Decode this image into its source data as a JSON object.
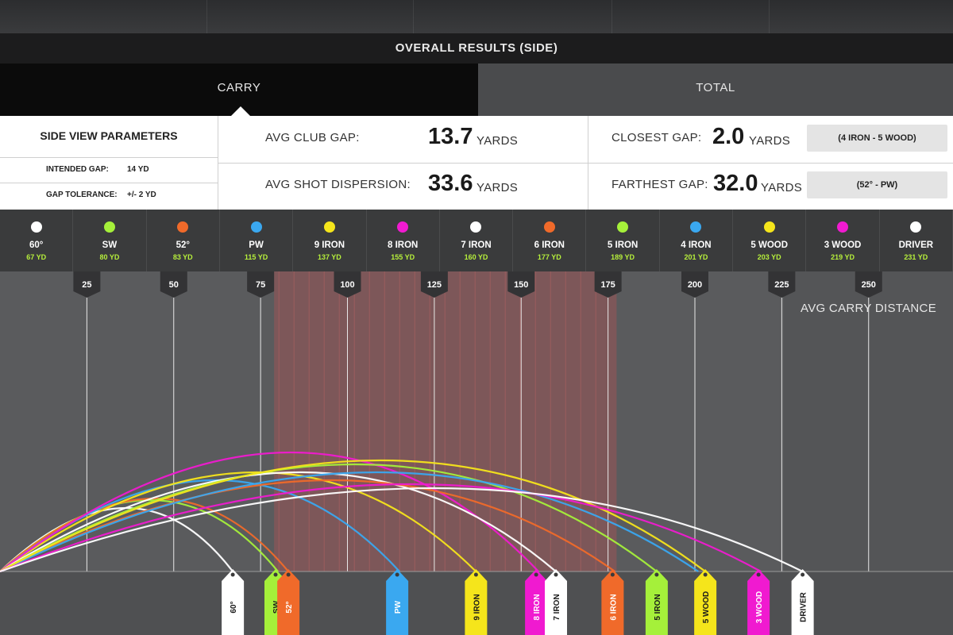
{
  "header": {
    "title": "OVERALL RESULTS (SIDE)"
  },
  "tabs": [
    {
      "label": "CARRY",
      "active": true
    },
    {
      "label": "TOTAL",
      "active": false
    }
  ],
  "parameters": {
    "title": "SIDE VIEW PARAMETERS",
    "intended_gap_label": "INTENDED GAP:",
    "intended_gap_value": "14 YD",
    "gap_tolerance_label": "GAP TOLERANCE:",
    "gap_tolerance_value": "+/- 2 YD"
  },
  "stats": {
    "avg_club_gap": {
      "label": "AVG CLUB GAP:",
      "value": "13.7",
      "unit": "YARDS"
    },
    "avg_shot_dispersion": {
      "label": "AVG SHOT DISPERSION:",
      "value": "33.6",
      "unit": "YARDS"
    },
    "closest_gap": {
      "label": "CLOSEST GAP:",
      "value": "2.0",
      "unit": "YARDS",
      "clubs": "(4 IRON - 5 WOOD)"
    },
    "farthest_gap": {
      "label": "FARTHEST GAP:",
      "value": "32.0",
      "unit": "YARDS",
      "clubs": "(52° - PW)"
    }
  },
  "clubs": [
    {
      "name": "60°",
      "dist": "67 YD",
      "carry": 67,
      "color": "#ffffff",
      "tag": "60°"
    },
    {
      "name": "SW",
      "dist": "80 YD",
      "carry": 80,
      "color": "#a5f03a",
      "tag": "SW"
    },
    {
      "name": "52°",
      "dist": "83 YD",
      "carry": 83,
      "color": "#f06a2a",
      "tag": "52°"
    },
    {
      "name": "PW",
      "dist": "115 YD",
      "carry": 115,
      "color": "#3aa8f0",
      "tag": "PW"
    },
    {
      "name": "9 IRON",
      "dist": "137 YD",
      "carry": 137,
      "color": "#f5e51b",
      "tag": "9 IRON"
    },
    {
      "name": "8 IRON",
      "dist": "155 YD",
      "carry": 155,
      "color": "#f01ad0",
      "tag": "8 IRON"
    },
    {
      "name": "7 IRON",
      "dist": "160 YD",
      "carry": 160,
      "color": "#ffffff",
      "tag": "7 IRON"
    },
    {
      "name": "6 IRON",
      "dist": "177 YD",
      "carry": 177,
      "color": "#f06a2a",
      "tag": "6 IRON"
    },
    {
      "name": "5 IRON",
      "dist": "189 YD",
      "carry": 189,
      "color": "#a5f03a",
      "tag": "5 IRON"
    },
    {
      "name": "4 IRON",
      "dist": "201 YD",
      "carry": 201,
      "color": "#3aa8f0",
      "tag": ""
    },
    {
      "name": "5 WOOD",
      "dist": "203 YD",
      "carry": 203,
      "color": "#f5e51b",
      "tag": "5 WOOD"
    },
    {
      "name": "3 WOOD",
      "dist": "219 YD",
      "carry": 219,
      "color": "#f01ad0",
      "tag": "3 WOOD"
    },
    {
      "name": "DRIVER",
      "dist": "231 YD",
      "carry": 231,
      "color": "#ffffff",
      "tag": "DRIVER"
    }
  ],
  "axis": {
    "label": "AVG CARRY DISTANCE",
    "ticks": [
      25,
      50,
      75,
      100,
      125,
      150,
      175,
      200,
      225,
      250
    ]
  },
  "chart_data": {
    "type": "line",
    "xlabel": "AVG CARRY DISTANCE",
    "x_ticks": [
      25,
      50,
      75,
      100,
      125,
      150,
      175,
      200,
      225,
      250
    ],
    "series": [
      {
        "name": "60°",
        "carry": 67
      },
      {
        "name": "SW",
        "carry": 80
      },
      {
        "name": "52°",
        "carry": 83
      },
      {
        "name": "PW",
        "carry": 115
      },
      {
        "name": "9 IRON",
        "carry": 137
      },
      {
        "name": "8 IRON",
        "carry": 155
      },
      {
        "name": "7 IRON",
        "carry": 160
      },
      {
        "name": "6 IRON",
        "carry": 177
      },
      {
        "name": "5 IRON",
        "carry": 189
      },
      {
        "name": "4 IRON",
        "carry": 201
      },
      {
        "name": "5 WOOD",
        "carry": 203
      },
      {
        "name": "3 WOOD",
        "carry": 219
      },
      {
        "name": "DRIVER",
        "carry": 231
      }
    ],
    "highlight_range": [
      83,
      177
    ],
    "grid": true
  }
}
